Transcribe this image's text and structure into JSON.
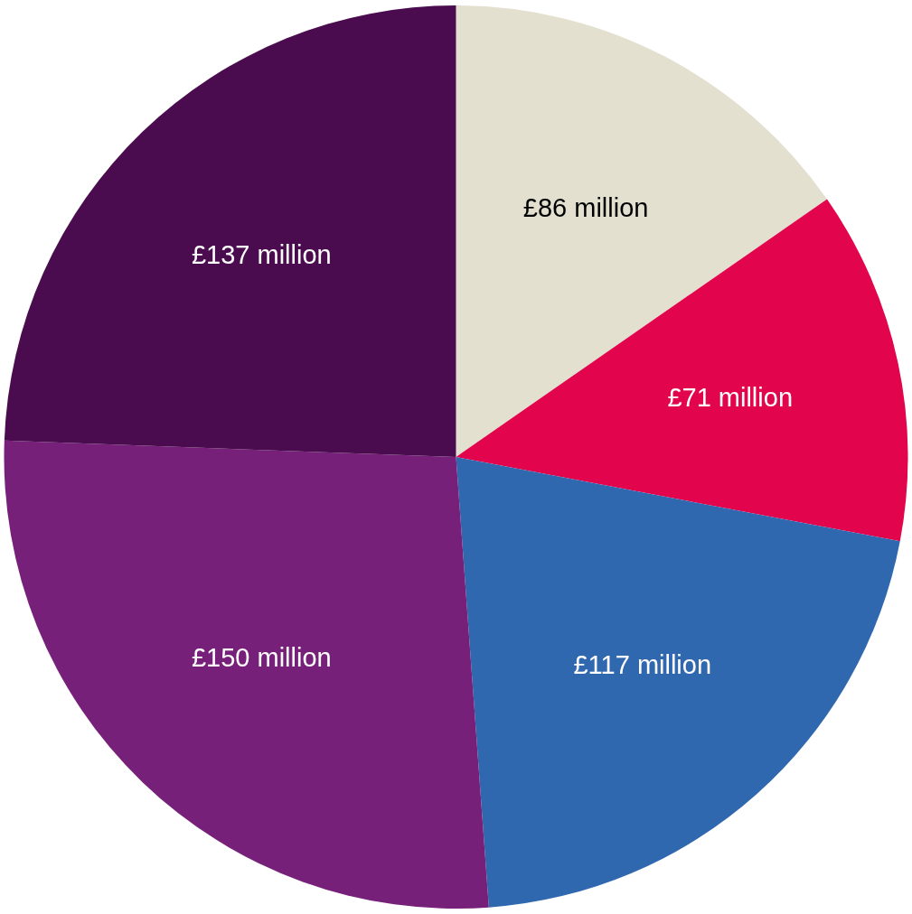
{
  "chart_data": {
    "type": "pie",
    "categories": [
      null,
      null,
      null,
      null,
      null
    ],
    "values": [
      86,
      71,
      117,
      150,
      137
    ],
    "colors": [
      "#e3e0d0",
      "#e2044c",
      "#3068b0",
      "#77207a",
      "#4a0c4e"
    ],
    "value_labels": [
      "£86 million",
      "£71 million",
      "£117 million",
      "£150 million",
      "£137 million"
    ]
  }
}
